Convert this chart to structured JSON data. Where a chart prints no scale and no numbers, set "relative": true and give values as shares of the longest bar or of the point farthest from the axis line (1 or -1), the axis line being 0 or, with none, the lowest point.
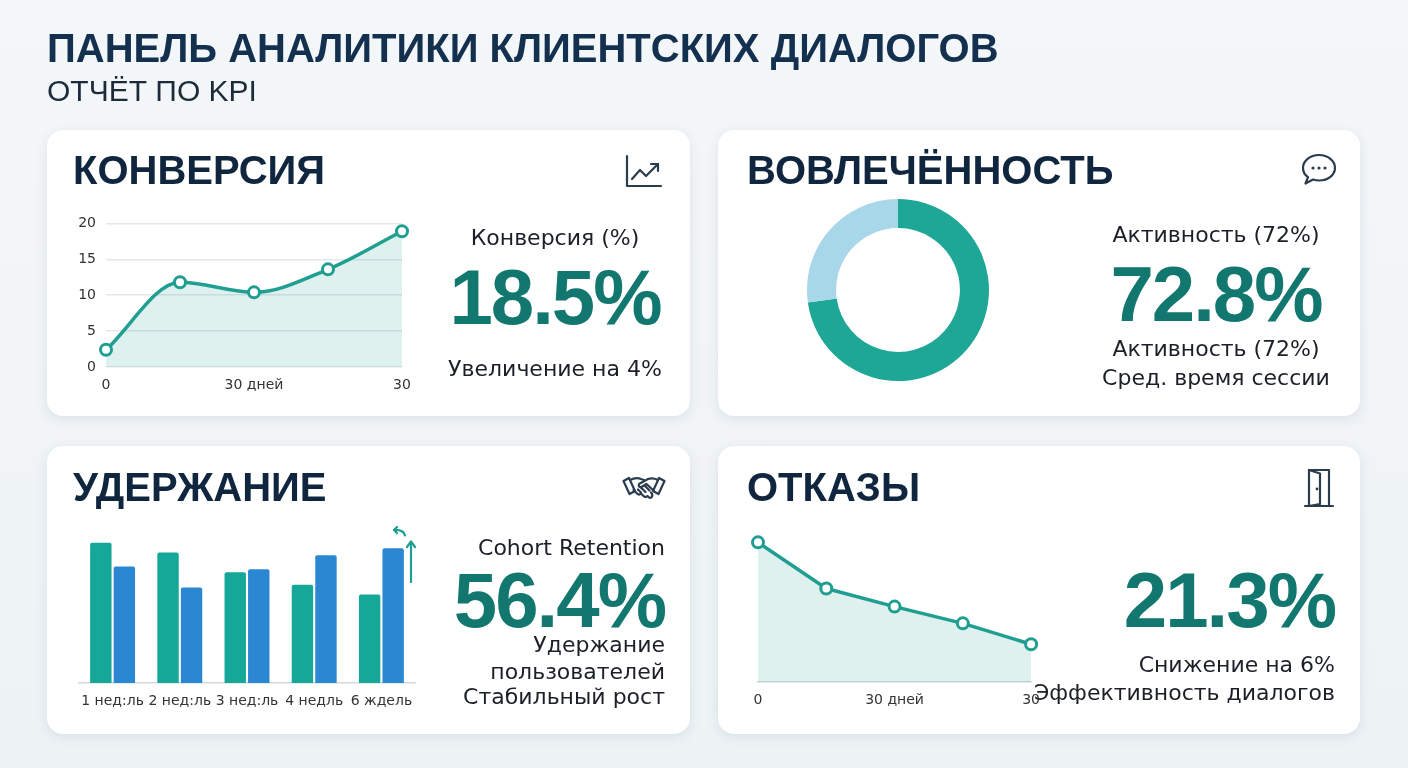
{
  "chart_data": [
    {
      "type": "other",
      "title": "ПАНЕЛЬ АНАЛИТИКИ КЛИЕНТСКИХ ДИАЛОГОВ",
      "subtitle": "ОТЧЁТ ПО KPI"
    },
    {
      "type": "area",
      "title": "КОНВЕРСИЯ",
      "categories": [
        "0",
        null,
        "30 дней",
        null,
        "30"
      ],
      "values": [
        2.4,
        11.8,
        10.4,
        13.6,
        18.9
      ],
      "color": "#1f9e91",
      "ylim": [
        0,
        20
      ],
      "yticks": [
        0,
        5,
        10,
        15,
        20
      ],
      "grid": "y",
      "marker": "circle",
      "annotations": [
        "Конверсия (%)",
        "18.5%",
        "Увеличение на 4%"
      ]
    },
    {
      "type": "donut",
      "title": "ВОВЛЕЧЁННОСТЬ",
      "categories": [
        null,
        null
      ],
      "values": [
        72.8,
        27.2
      ],
      "colors": [
        "#1ea796",
        "#a9d7ea"
      ],
      "annotations": [
        "Активность (72%)",
        "72.8%",
        "Активность (72%)",
        "Сред. время сессии"
      ]
    },
    {
      "type": "bar",
      "title": "УДЕРЖАНИЕ",
      "categories": [
        "1 нед:ль",
        "2 нед:ль",
        "3 нед:ль",
        "4 недль",
        "6 ждель"
      ],
      "relative": true,
      "series": [
        {
          "color": "#15a898",
          "values": [
            1,
            0.93,
            0.79,
            0.7,
            0.63
          ]
        },
        {
          "color": "#2b87d1",
          "values": [
            0.83,
            0.68,
            0.81,
            0.91,
            0.96
          ]
        }
      ],
      "annotations": [
        "Cohort Retention",
        "56.4%",
        "Удержание пользователей",
        "Стабильный рост"
      ]
    },
    {
      "type": "area",
      "title": "ОТКАЗЫ",
      "categories": [
        "0",
        null,
        "30 дней",
        null,
        "30"
      ],
      "relative": true,
      "values": [
        1,
        0.67,
        0.54,
        0.42,
        0.27
      ],
      "color": "#1f9e91",
      "marker": "circle",
      "annotations": [
        "21.3%",
        "Снижение на 6%",
        "Эффективность диалогов"
      ]
    }
  ]
}
